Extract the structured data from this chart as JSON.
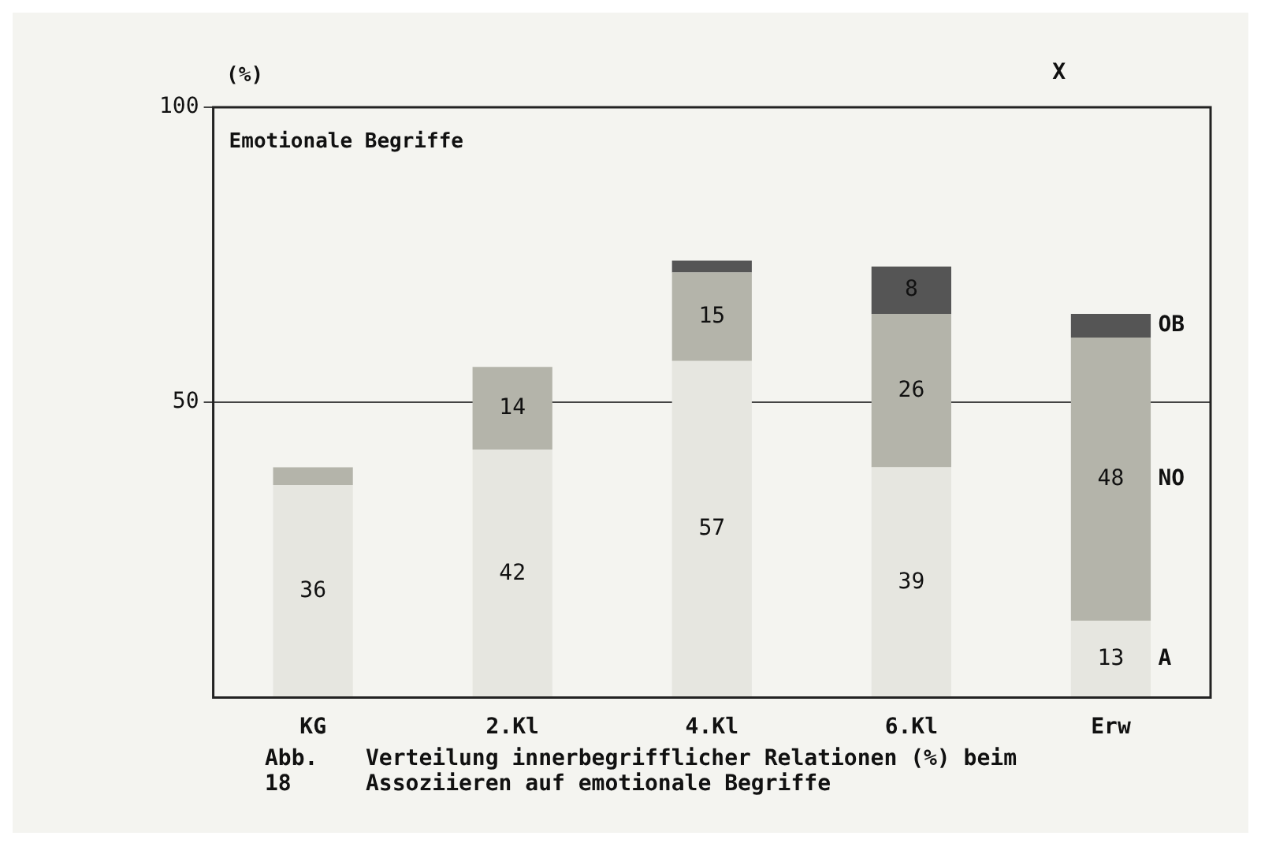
{
  "chart_data": {
    "type": "bar",
    "title": "Emotionale Begriffe",
    "ylabel": "(%)",
    "categories": [
      "KG",
      "2.Kl",
      "4.Kl",
      "6.Kl",
      "Erw"
    ],
    "stacked": true,
    "series": [
      {
        "name": "A",
        "color": "#e6e6e0",
        "values": [
          36,
          42,
          57,
          39,
          13
        ],
        "value_labels": [
          "36",
          "42",
          "57",
          "39",
          "13"
        ]
      },
      {
        "name": "NO",
        "color": "#b4b4aa",
        "values": [
          3,
          14,
          15,
          26,
          48
        ],
        "value_labels": [
          null,
          "14",
          "15",
          "26",
          "48"
        ]
      },
      {
        "name": "OB",
        "color": "#555555",
        "values": [
          null,
          null,
          2,
          8,
          4
        ],
        "value_labels": [
          null,
          null,
          null,
          "8",
          null
        ]
      }
    ],
    "ylim": [
      0,
      100
    ],
    "yticks": [
      50,
      100
    ],
    "grid": "y",
    "annotations": [
      "X",
      "Abb. 18",
      "Verteilung innerbegrifflicher Relationen (%) beim Assoziieren auf emotionale Begriffe"
    ]
  }
}
